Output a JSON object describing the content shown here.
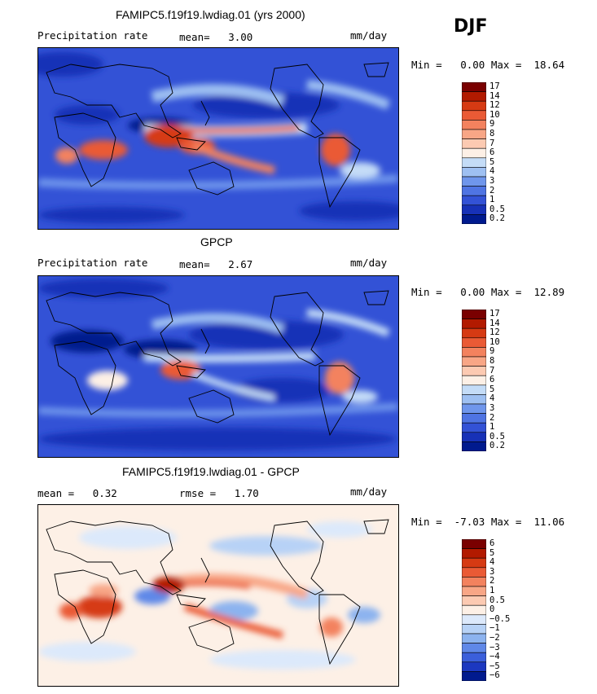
{
  "season": "DJF",
  "panels": [
    {
      "title": "FAMIPC5.f19f19.lwdiag.01 (yrs 2000)",
      "left_label": "Precipitation rate",
      "mid_label": "mean=   3.00",
      "right_label": "mm/day",
      "minmax": "Min =   0.00 Max =  18.64",
      "levels": [
        "17",
        "14",
        "12",
        "10",
        "9",
        "8",
        "7",
        "6",
        "5",
        "4",
        "3",
        "2",
        "1",
        "0.5",
        "0.2"
      ],
      "colors": [
        "#7a0000",
        "#b21a00",
        "#d63a13",
        "#ea5a35",
        "#f3825e",
        "#f8a686",
        "#fccab2",
        "#fdf0e6",
        "#c4dcf7",
        "#9ec0f2",
        "#6f96ec",
        "#4f74e3",
        "#3352d6",
        "#1731b7",
        "#001a8e"
      ]
    },
    {
      "title": "GPCP",
      "left_label": "Precipitation rate",
      "mid_label": "mean=   2.67",
      "right_label": "mm/day",
      "minmax": "Min =   0.00 Max =  12.89",
      "levels": [
        "17",
        "14",
        "12",
        "10",
        "9",
        "8",
        "7",
        "6",
        "5",
        "4",
        "3",
        "2",
        "1",
        "0.5",
        "0.2"
      ],
      "colors": [
        "#7a0000",
        "#b21a00",
        "#d63a13",
        "#ea5a35",
        "#f3825e",
        "#f8a686",
        "#fccab2",
        "#fdf0e6",
        "#c4dcf7",
        "#9ec0f2",
        "#6f96ec",
        "#4f74e3",
        "#3352d6",
        "#1731b7",
        "#001a8e"
      ]
    },
    {
      "title": "FAMIPC5.f19f19.lwdiag.01 - GPCP",
      "left_label": "mean =   0.32",
      "mid_label": "rmse =   1.70",
      "right_label": "mm/day",
      "minmax": "Min =  -7.03 Max =  11.06",
      "levels": [
        "6",
        "5",
        "4",
        "3",
        "2",
        "1",
        "0.5",
        "0",
        "−0.5",
        "−1",
        "−2",
        "−3",
        "−4",
        "−5",
        "−6"
      ],
      "colors": [
        "#7a0000",
        "#b21a00",
        "#d63a13",
        "#ea5a35",
        "#f3825e",
        "#f8a686",
        "#fccab2",
        "#fdf0e6",
        "#dce9fb",
        "#b7d2f6",
        "#8cb3ef",
        "#5f88e8",
        "#3b5fdb",
        "#1c38c0",
        "#001a8e"
      ]
    }
  ]
}
